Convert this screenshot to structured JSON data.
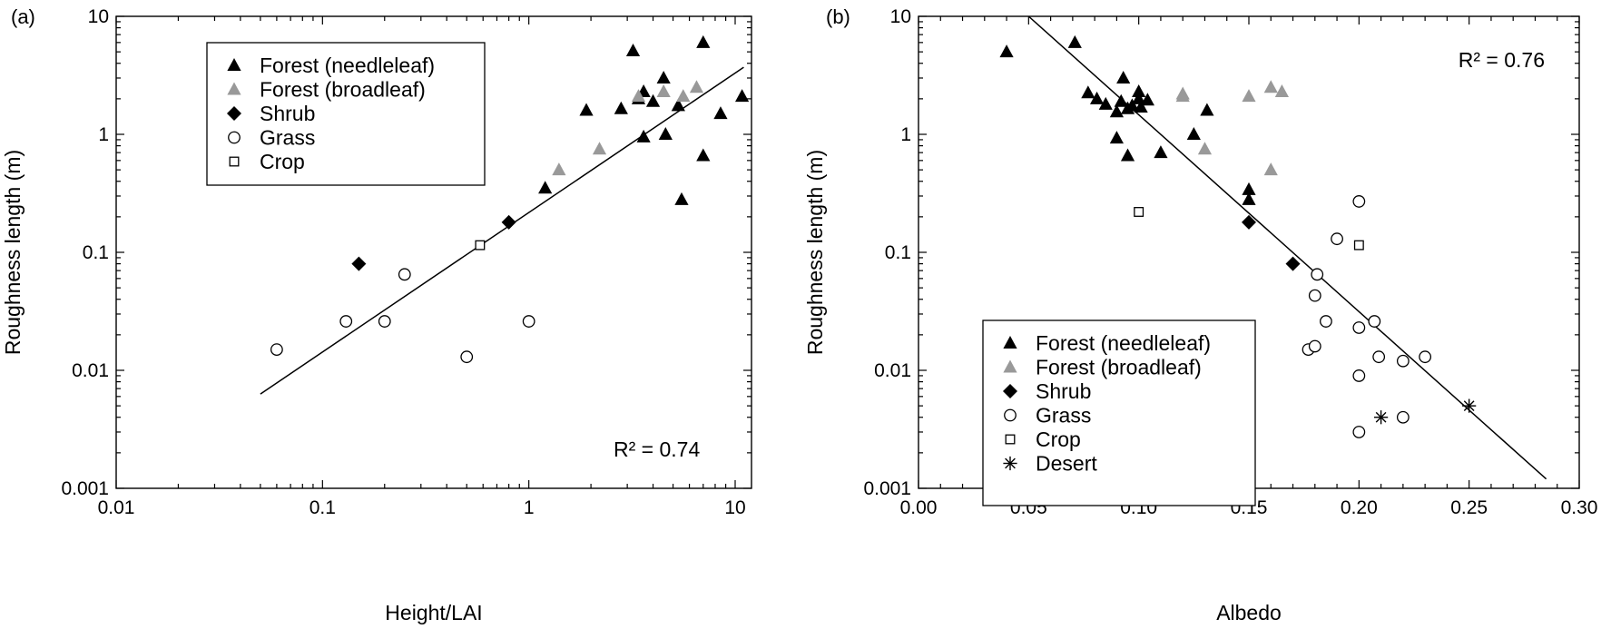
{
  "chart_data": [
    {
      "type": "scatter",
      "panel_label": "(a)",
      "xlabel": "Height/LAI",
      "ylabel": "Roughness length (m)",
      "xscale": "log",
      "yscale": "log",
      "xlim": [
        0.01,
        12
      ],
      "ylim": [
        0.001,
        10
      ],
      "xticks": [
        0.01,
        0.1,
        1,
        10
      ],
      "xtick_labels": [
        "0.01",
        "0.1",
        "1",
        "10"
      ],
      "yticks": [
        0.001,
        0.01,
        0.1,
        1,
        10
      ],
      "ytick_labels": [
        "0.001",
        "0.01",
        "0.1",
        "1",
        "10"
      ],
      "annotation": "R² = 0.74",
      "legend_position": "top-left",
      "series": [
        {
          "name": "Forest (needleleaf)",
          "marker": "triangle",
          "color": "#000000",
          "points": [
            [
              3.2,
              5.1
            ],
            [
              7,
              6
            ],
            [
              4.5,
              3
            ],
            [
              3.4,
              2
            ],
            [
              3.6,
              2.3
            ],
            [
              4.0,
              1.9
            ],
            [
              5.3,
              1.75
            ],
            [
              2.8,
              1.65
            ],
            [
              1.9,
              1.6
            ],
            [
              10.8,
              2.1
            ],
            [
              8.5,
              1.5
            ],
            [
              3.6,
              0.95
            ],
            [
              4.6,
              1.0
            ],
            [
              1.2,
              0.35
            ],
            [
              7.0,
              0.66
            ],
            [
              5.5,
              0.28
            ]
          ]
        },
        {
          "name": "Forest (broadleaf)",
          "marker": "triangle",
          "color": "#999999",
          "points": [
            [
              3.4,
              2.1
            ],
            [
              4.5,
              2.3
            ],
            [
              5.6,
              2.1
            ],
            [
              6.5,
              2.5
            ],
            [
              2.2,
              0.75
            ],
            [
              1.4,
              0.5
            ]
          ]
        },
        {
          "name": "Shrub",
          "marker": "diamond",
          "color": "#000000",
          "points": [
            [
              0.15,
              0.08
            ],
            [
              0.8,
              0.18
            ]
          ]
        },
        {
          "name": "Grass",
          "marker": "circle",
          "color": "#000000",
          "points": [
            [
              0.06,
              0.015
            ],
            [
              0.13,
              0.026
            ],
            [
              0.2,
              0.026
            ],
            [
              0.25,
              0.065
            ],
            [
              0.5,
              0.013
            ],
            [
              1.0,
              0.026
            ]
          ]
        },
        {
          "name": "Crop",
          "marker": "square",
          "color": "#000000",
          "points": [
            [
              0.58,
              0.115
            ]
          ]
        }
      ],
      "fit_line": [
        [
          0.05,
          0.0063
        ],
        [
          11,
          3.7
        ]
      ]
    },
    {
      "type": "scatter",
      "panel_label": "(b)",
      "xlabel": "Albedo",
      "ylabel": "Roughness length (m)",
      "xscale": "linear",
      "yscale": "log",
      "xlim": [
        0,
        0.3
      ],
      "ylim": [
        0.001,
        10
      ],
      "xticks": [
        0,
        0.05,
        0.1,
        0.15,
        0.2,
        0.25,
        0.3
      ],
      "xtick_labels": [
        "0.00",
        "0.05",
        "0.10",
        "0.15",
        "0.20",
        "0.25",
        "0.30"
      ],
      "yticks": [
        0.001,
        0.01,
        0.1,
        1,
        10
      ],
      "ytick_labels": [
        "0.001",
        "0.01",
        "0.1",
        "1",
        "10"
      ],
      "annotation": "R² = 0.76",
      "legend_position": "bottom-left",
      "series": [
        {
          "name": "Forest (needleleaf)",
          "marker": "triangle",
          "color": "#000000",
          "points": [
            [
              0.04,
              5.0
            ],
            [
              0.071,
              6.0
            ],
            [
              0.093,
              3.0
            ],
            [
              0.077,
              2.25
            ],
            [
              0.081,
              2.0
            ],
            [
              0.085,
              1.8
            ],
            [
              0.09,
              1.55
            ],
            [
              0.092,
              1.9
            ],
            [
              0.095,
              1.65
            ],
            [
              0.097,
              1.75
            ],
            [
              0.1,
              2.3
            ],
            [
              0.1,
              2.0
            ],
            [
              0.101,
              1.7
            ],
            [
              0.104,
              1.95
            ],
            [
              0.09,
              0.93
            ],
            [
              0.095,
              0.66
            ],
            [
              0.11,
              0.7
            ],
            [
              0.125,
              1.0
            ],
            [
              0.131,
              1.6
            ],
            [
              0.15,
              0.34
            ],
            [
              0.15,
              0.28
            ]
          ]
        },
        {
          "name": "Forest (broadleaf)",
          "marker": "triangle",
          "color": "#999999",
          "points": [
            [
              0.12,
              2.2
            ],
            [
              0.12,
              2.1
            ],
            [
              0.15,
              2.1
            ],
            [
              0.16,
              2.5
            ],
            [
              0.165,
              2.3
            ],
            [
              0.13,
              0.75
            ],
            [
              0.16,
              0.5
            ]
          ]
        },
        {
          "name": "Shrub",
          "marker": "diamond",
          "color": "#000000",
          "points": [
            [
              0.15,
              0.18
            ],
            [
              0.17,
              0.08
            ]
          ]
        },
        {
          "name": "Grass",
          "marker": "circle",
          "color": "#000000",
          "points": [
            [
              0.2,
              0.27
            ],
            [
              0.19,
              0.13
            ],
            [
              0.181,
              0.065
            ],
            [
              0.18,
              0.043
            ],
            [
              0.185,
              0.026
            ],
            [
              0.2,
              0.023
            ],
            [
              0.207,
              0.026
            ],
            [
              0.177,
              0.015
            ],
            [
              0.18,
              0.016
            ],
            [
              0.209,
              0.013
            ],
            [
              0.22,
              0.012
            ],
            [
              0.23,
              0.013
            ],
            [
              0.2,
              0.009
            ],
            [
              0.22,
              0.004
            ],
            [
              0.2,
              0.003
            ]
          ]
        },
        {
          "name": "Crop",
          "marker": "square",
          "color": "#000000",
          "points": [
            [
              0.1,
              0.22
            ],
            [
              0.2,
              0.115
            ]
          ]
        },
        {
          "name": "Desert",
          "marker": "asterisk",
          "color": "#000000",
          "points": [
            [
              0.21,
              0.004
            ],
            [
              0.25,
              0.005
            ]
          ]
        }
      ],
      "fit_line": [
        [
          0.05,
          10
        ],
        [
          0.285,
          0.0012
        ]
      ]
    }
  ]
}
